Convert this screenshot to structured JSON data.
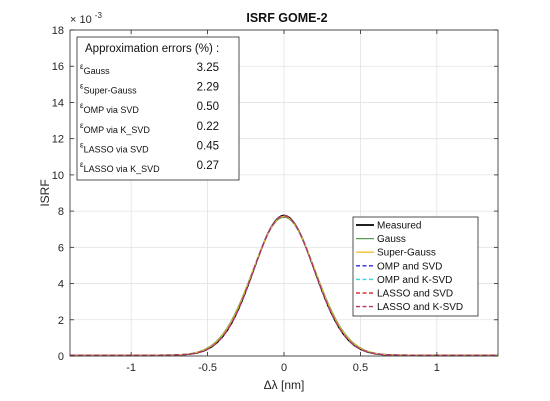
{
  "chart_data": {
    "type": "line",
    "title": "ISRF GOME-2",
    "xlabel": "Δλ [nm]",
    "ylabel": "ISRF",
    "y_exponent_label": "× 10",
    "y_exponent_power": "-3",
    "xlim": [
      -1.4,
      1.4
    ],
    "ylim": [
      0,
      18
    ],
    "xticks": [
      -1,
      -0.5,
      0,
      0.5,
      1
    ],
    "xtick_labels": [
      "-1",
      "-0.5",
      "0",
      "0.5",
      "1"
    ],
    "yticks": [
      0,
      2,
      4,
      6,
      8,
      10,
      12,
      14,
      16,
      18
    ],
    "ytick_labels": [
      "0",
      "2",
      "4",
      "6",
      "8",
      "10",
      "12",
      "14",
      "16",
      "18"
    ],
    "grid": true,
    "legend_position": "bottom-right",
    "series": [
      {
        "name": "Measured",
        "peak": 7.72,
        "sigma": 0.2,
        "style": "solid",
        "color": "#000000",
        "width": 1.6
      },
      {
        "name": "Gauss",
        "peak": 7.62,
        "sigma": 0.207,
        "style": "solid",
        "color": "#5a9e55",
        "width": 1.1
      },
      {
        "name": "Super-Gauss",
        "peak": 7.67,
        "sigma": 0.204,
        "style": "solid",
        "color": "#f0c030",
        "width": 1.1
      },
      {
        "name": "OMP and SVD",
        "peak": 7.7,
        "sigma": 0.2,
        "style": "dashed",
        "color": "#2b2bd8",
        "width": 1.2
      },
      {
        "name": "OMP and K-SVD",
        "peak": 7.71,
        "sigma": 0.2,
        "style": "dashed",
        "color": "#3fd0e0",
        "width": 1.2
      },
      {
        "name": "LASSO and SVD",
        "peak": 7.7,
        "sigma": 0.201,
        "style": "dashed",
        "color": "#e03030",
        "width": 1.2
      },
      {
        "name": "LASSO and K-SVD",
        "peak": 7.71,
        "sigma": 0.2,
        "style": "dashed",
        "color": "#b8336a",
        "width": 1.2
      }
    ],
    "annotation": {
      "title": "Approximation errors (%) :",
      "rows": [
        {
          "symbol": "ε",
          "sub": "Gauss",
          "value": "3.25"
        },
        {
          "symbol": "ε",
          "sub": "Super-Gauss",
          "value": "2.29"
        },
        {
          "symbol": "ε",
          "sub": "OMP via SVD",
          "value": "0.50"
        },
        {
          "symbol": "ε",
          "sub": "OMP via K_SVD",
          "value": "0.22"
        },
        {
          "symbol": "ε",
          "sub": "LASSO via SVD",
          "value": "0.45"
        },
        {
          "symbol": "ε",
          "sub": "LASSO via K_SVD",
          "value": "0.27"
        }
      ]
    }
  }
}
